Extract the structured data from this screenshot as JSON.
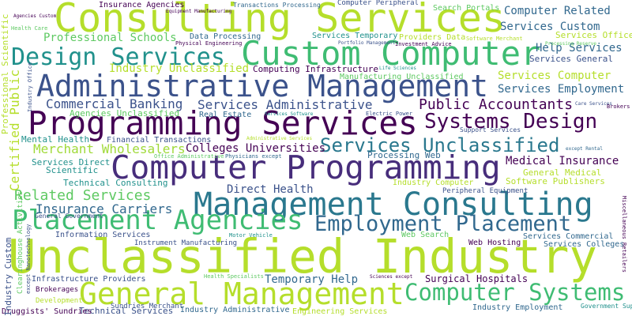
{
  "words": [
    "Consulting Services",
    "Custom Computer",
    "Design Services",
    "Administrative Management",
    "Programming Services",
    "Systems Design",
    "Computer Programming",
    "Management Consulting",
    "Unclassified Industry",
    "General Management",
    "Computer Systems",
    "Placement Agencies",
    "Employment Placement",
    "Services Unclassified",
    "Public Accountants",
    "Commercial Banking",
    "Services Administrative",
    "Related Services",
    "Insurance Carriers",
    "Merchant Wholesalers",
    "Colleges Universities",
    "Medical Insurance",
    "Direct Health",
    "Temporary Help",
    "Surgical Hospitals",
    "Professional Schools",
    "Computer Related",
    "Services Custom",
    "Services Office",
    "Help Services",
    "Services General",
    "Services Computer",
    "Services Employment",
    "Industry Unclassified",
    "Computing Infrastructure",
    "Manufacturing Unclassified",
    "Agencies Unclassified",
    "Real Estate",
    "Mental Health",
    "Financial Transactions",
    "Services Direct",
    "Scientific",
    "Technical Consulting",
    "Processing Web",
    "General Medical",
    "Software Publishers",
    "Industry Computer",
    "Peripheral Equipment",
    "Information Services",
    "Instrument Manufacturing",
    "Motor Vehicle",
    "Web Search",
    "Web Hosting",
    "Services Commercial",
    "Services Colleges",
    "Infrastructure Providers",
    "Brokerages",
    "Development",
    "Technical Services",
    "Sundries Merchant",
    "Industry Administrative",
    "Engineering Services",
    "Industry Employment",
    "Government Support",
    "Druggists' Sundries",
    "Insurance Agencies",
    "Agencies Custom",
    "Health Care",
    "Equipment Manufacturing",
    "Transactions Processing",
    "Computer Peripheral",
    "Search Portals",
    "Data Processing",
    "Physical Engineering",
    "Services Temporary",
    "Providers Data",
    "Software Merchant",
    "Portfolio Management",
    "Investment Advice",
    "Processing Reserve",
    "Life Sciences",
    "Care Services",
    "Brokers",
    "Support Services",
    "Office Administrative",
    "Physicians except",
    "Administrative Services",
    "Services Software",
    "Electric Power",
    "except Rental",
    "General Government",
    "Health Specialists",
    "Sciences except",
    "Professional Scientific",
    "Certified Public",
    "Industry Office",
    "Industry Custom",
    "Clearinghouse Activities",
    "except Nanotechnology",
    "Miscellaneous Retailers"
  ]
}
